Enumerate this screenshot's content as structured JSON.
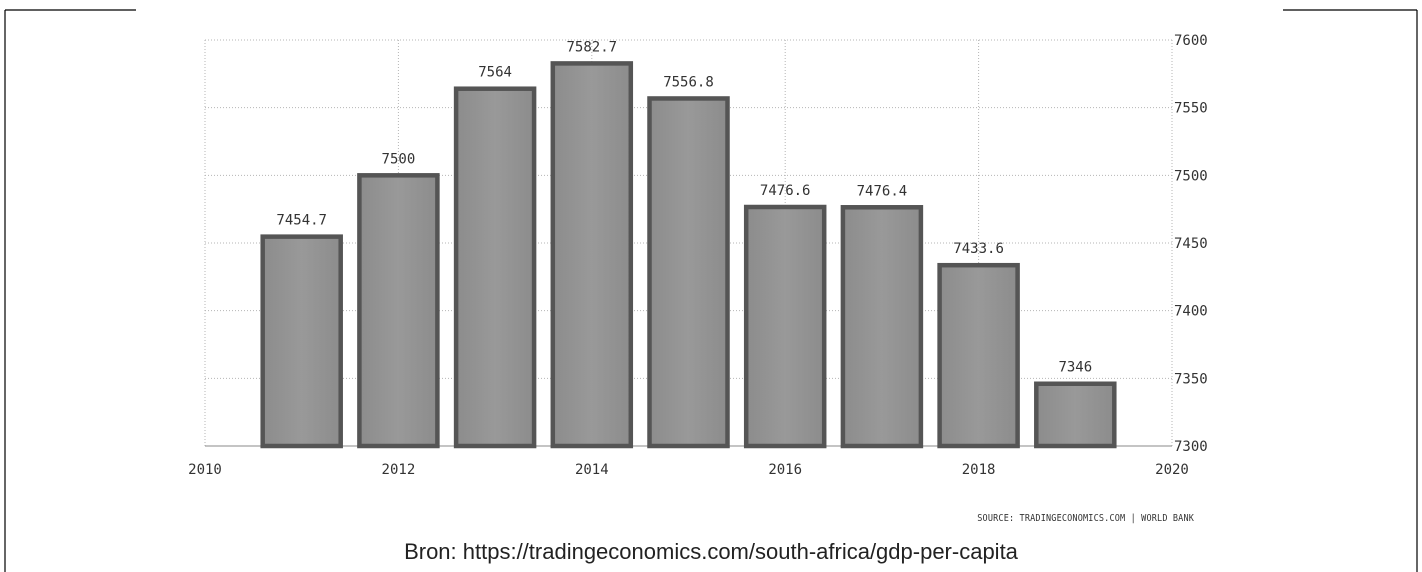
{
  "chart_data": {
    "type": "bar",
    "x": [
      2011,
      2012,
      2013,
      2014,
      2015,
      2016,
      2017,
      2018,
      2019
    ],
    "values": [
      7454.7,
      7500,
      7564,
      7582.7,
      7556.8,
      7476.6,
      7476.4,
      7433.6,
      7346
    ],
    "data_labels": [
      "7454.7",
      "7500",
      "7564",
      "7582.7",
      "7556.8",
      "7476.6",
      "7476.4",
      "7433.6",
      "7346"
    ],
    "xlim": [
      2010,
      2020
    ],
    "ylim": [
      7300,
      7600
    ],
    "x_ticks": [
      "2010",
      "2012",
      "2014",
      "2016",
      "2018",
      "2020"
    ],
    "y_ticks": [
      "7300",
      "7350",
      "7400",
      "7450",
      "7500",
      "7550",
      "7600"
    ],
    "y_axis_position": "right",
    "grid": true,
    "bar_color": "#999999",
    "bar_border_color": "#555555"
  },
  "source_note": "SOURCE: TRADINGECONOMICS.COM | WORLD BANK",
  "caption": "Bron: https://tradingeconomics.com/south-africa/gdp-per-capita"
}
